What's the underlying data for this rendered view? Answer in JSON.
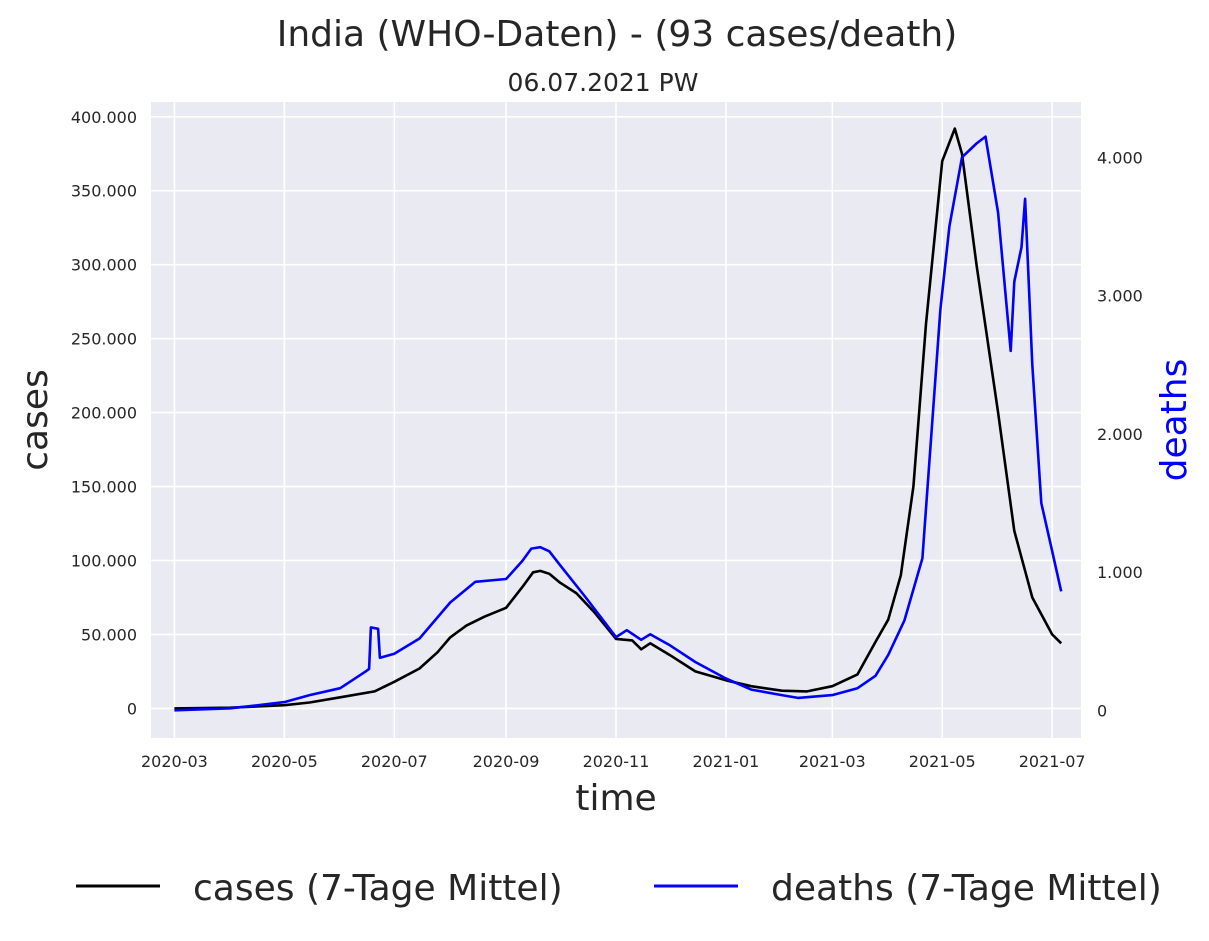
{
  "chart_data": {
    "type": "line",
    "title": "India (WHO-Daten) - (93 cases/death)",
    "subtitle": "06.07.2021 PW",
    "xlabel": "time",
    "ylabel": "cases",
    "y2label": "deaths",
    "x_ticks": [
      "2020-03",
      "2020-05",
      "2020-07",
      "2020-09",
      "2020-11",
      "2021-01",
      "2021-03",
      "2021-05",
      "2021-07"
    ],
    "xlim": [
      "2020-02-17",
      "2021-07-17"
    ],
    "ylim": [
      -20000,
      410000
    ],
    "y2lim": [
      -200,
      4400
    ],
    "y_ticks": [
      0,
      50000,
      100000,
      150000,
      200000,
      250000,
      300000,
      350000,
      400000
    ],
    "y_tick_labels": [
      "0",
      "50.000",
      "100.000",
      "150.000",
      "200.000",
      "250.000",
      "300.000",
      "350.000",
      "400.000"
    ],
    "y2_ticks": [
      0,
      1000,
      2000,
      3000,
      4000
    ],
    "y2_tick_labels": [
      "0",
      "1.000",
      "2.000",
      "3.000",
      "4.000"
    ],
    "grid": true,
    "legend_position": "bottom",
    "series": [
      {
        "name": "cases (7-Tage Mittel)",
        "axis": "left",
        "color": "#000000",
        "points": [
          [
            "2020-03-01",
            0
          ],
          [
            "2020-04-01",
            500
          ],
          [
            "2020-05-01",
            2200
          ],
          [
            "2020-05-15",
            4000
          ],
          [
            "2020-06-01",
            7500
          ],
          [
            "2020-06-20",
            11500
          ],
          [
            "2020-07-01",
            18000
          ],
          [
            "2020-07-15",
            27000
          ],
          [
            "2020-07-25",
            38000
          ],
          [
            "2020-08-01",
            48000
          ],
          [
            "2020-08-10",
            56000
          ],
          [
            "2020-08-20",
            62000
          ],
          [
            "2020-09-01",
            68000
          ],
          [
            "2020-09-10",
            82000
          ],
          [
            "2020-09-16",
            92000
          ],
          [
            "2020-09-20",
            93000
          ],
          [
            "2020-09-25",
            91000
          ],
          [
            "2020-10-01",
            85000
          ],
          [
            "2020-10-10",
            78000
          ],
          [
            "2020-10-20",
            65000
          ],
          [
            "2020-11-01",
            47000
          ],
          [
            "2020-11-10",
            46000
          ],
          [
            "2020-11-15",
            40000
          ],
          [
            "2020-11-20",
            44000
          ],
          [
            "2020-12-01",
            36000
          ],
          [
            "2020-12-15",
            25000
          ],
          [
            "2021-01-01",
            19000
          ],
          [
            "2021-01-15",
            15000
          ],
          [
            "2021-02-01",
            12000
          ],
          [
            "2021-02-15",
            11500
          ],
          [
            "2021-03-01",
            15000
          ],
          [
            "2021-03-15",
            23000
          ],
          [
            "2021-03-25",
            45000
          ],
          [
            "2021-04-01",
            60000
          ],
          [
            "2021-04-08",
            90000
          ],
          [
            "2021-04-15",
            150000
          ],
          [
            "2021-04-22",
            260000
          ],
          [
            "2021-05-01",
            370000
          ],
          [
            "2021-05-08",
            392000
          ],
          [
            "2021-05-12",
            375000
          ],
          [
            "2021-05-20",
            300000
          ],
          [
            "2021-06-01",
            200000
          ],
          [
            "2021-06-10",
            120000
          ],
          [
            "2021-06-20",
            75000
          ],
          [
            "2021-07-01",
            50000
          ],
          [
            "2021-07-06",
            44000
          ]
        ]
      },
      {
        "name": "deaths (7-Tage Mittel)",
        "axis": "right",
        "color": "#0000ff",
        "points": [
          [
            "2020-03-01",
            0
          ],
          [
            "2020-04-01",
            15
          ],
          [
            "2020-04-15",
            35
          ],
          [
            "2020-05-01",
            60
          ],
          [
            "2020-05-15",
            110
          ],
          [
            "2020-06-01",
            160
          ],
          [
            "2020-06-15",
            280
          ],
          [
            "2020-06-17",
            300
          ],
          [
            "2020-06-18",
            600
          ],
          [
            "2020-06-22",
            590
          ],
          [
            "2020-06-23",
            380
          ],
          [
            "2020-07-01",
            410
          ],
          [
            "2020-07-15",
            520
          ],
          [
            "2020-08-01",
            780
          ],
          [
            "2020-08-15",
            930
          ],
          [
            "2020-09-01",
            950
          ],
          [
            "2020-09-10",
            1080
          ],
          [
            "2020-09-15",
            1170
          ],
          [
            "2020-09-20",
            1180
          ],
          [
            "2020-09-25",
            1150
          ],
          [
            "2020-10-01",
            1050
          ],
          [
            "2020-10-15",
            820
          ],
          [
            "2020-10-25",
            650
          ],
          [
            "2020-11-01",
            530
          ],
          [
            "2020-11-07",
            580
          ],
          [
            "2020-11-15",
            510
          ],
          [
            "2020-11-20",
            550
          ],
          [
            "2020-12-01",
            470
          ],
          [
            "2020-12-15",
            350
          ],
          [
            "2021-01-01",
            230
          ],
          [
            "2021-01-15",
            150
          ],
          [
            "2021-02-01",
            110
          ],
          [
            "2021-02-10",
            90
          ],
          [
            "2021-03-01",
            110
          ],
          [
            "2021-03-15",
            160
          ],
          [
            "2021-03-25",
            250
          ],
          [
            "2021-04-01",
            400
          ],
          [
            "2021-04-10",
            650
          ],
          [
            "2021-04-20",
            1100
          ],
          [
            "2021-04-30",
            2900
          ],
          [
            "2021-05-05",
            3500
          ],
          [
            "2021-05-12",
            4000
          ],
          [
            "2021-05-20",
            4100
          ],
          [
            "2021-05-25",
            4150
          ],
          [
            "2021-06-01",
            3600
          ],
          [
            "2021-06-08",
            2600
          ],
          [
            "2021-06-10",
            3100
          ],
          [
            "2021-06-14",
            3350
          ],
          [
            "2021-06-16",
            3700
          ],
          [
            "2021-06-20",
            2500
          ],
          [
            "2021-06-25",
            1500
          ],
          [
            "2021-07-01",
            1150
          ],
          [
            "2021-07-06",
            860
          ]
        ]
      }
    ]
  }
}
